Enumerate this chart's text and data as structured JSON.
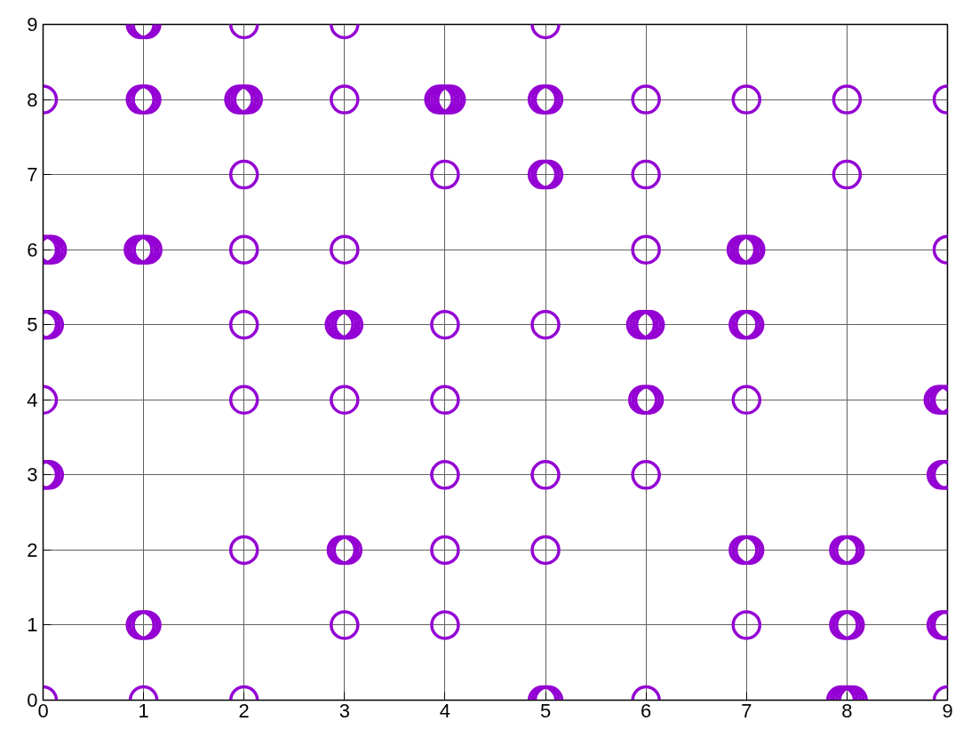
{
  "chart_data": {
    "type": "scatter",
    "x": [
      0.97,
      1,
      1.03,
      2,
      3,
      5,
      0,
      0.97,
      1,
      1.03,
      1.95,
      1.98,
      2.01,
      2.04,
      3,
      3.94,
      3.97,
      4,
      4.03,
      4.06,
      4.97,
      5,
      5.03,
      6,
      7,
      8,
      9,
      2,
      4,
      4.97,
      5,
      5.03,
      6,
      8,
      0,
      0.03,
      0.06,
      0.09,
      0.95,
      0.98,
      1.01,
      1.04,
      2,
      3,
      6,
      6.95,
      6.98,
      7.01,
      7.04,
      9,
      0,
      0.03,
      0.06,
      2,
      2.95,
      2.98,
      3.01,
      3.04,
      4,
      5,
      5.95,
      5.98,
      6.01,
      6.04,
      6.97,
      7,
      7.03,
      0,
      2,
      3,
      4,
      5.97,
      6,
      6.03,
      7,
      8.91,
      8.94,
      8.97,
      9,
      0,
      0.03,
      0.06,
      4,
      5,
      6,
      8.94,
      8.97,
      9,
      2,
      2.97,
      3,
      3.03,
      4,
      5,
      6.97,
      7,
      7.03,
      7.97,
      8,
      8.03,
      0.97,
      1,
      1.03,
      3,
      4,
      7,
      7.97,
      8,
      8.03,
      8.94,
      8.97,
      9,
      0,
      1,
      2,
      4.97,
      5,
      5.03,
      6,
      7.94,
      7.97,
      8,
      8.03,
      8.06,
      9
    ],
    "values": [
      9,
      9,
      9,
      9,
      9,
      9,
      8,
      8,
      8,
      8,
      8,
      8,
      8,
      8,
      8,
      8,
      8,
      8,
      8,
      8,
      8,
      8,
      8,
      8,
      8,
      8,
      8,
      7,
      7,
      7,
      7,
      7,
      7,
      7,
      6,
      6,
      6,
      6,
      6,
      6,
      6,
      6,
      6,
      6,
      6,
      6,
      6,
      6,
      6,
      6,
      5,
      5,
      5,
      5,
      5,
      5,
      5,
      5,
      5,
      5,
      5,
      5,
      5,
      5,
      5,
      5,
      5,
      4,
      4,
      4,
      4,
      4,
      4,
      4,
      4,
      4,
      4,
      4,
      4,
      3,
      3,
      3,
      3,
      3,
      3,
      3,
      3,
      3,
      2,
      2,
      2,
      2,
      2,
      2,
      2,
      2,
      2,
      2,
      2,
      2,
      1,
      1,
      1,
      1,
      1,
      1,
      1,
      1,
      1,
      1,
      1,
      1,
      0,
      0,
      0,
      0,
      0,
      0,
      0,
      0,
      0,
      0,
      0,
      0,
      0
    ],
    "color": "#9400d3",
    "marker": "circle",
    "xlim": [
      0,
      9
    ],
    "ylim": [
      0,
      9
    ],
    "xticks": [
      0,
      1,
      2,
      3,
      4,
      5,
      6,
      7,
      8,
      9
    ],
    "yticks": [
      0,
      1,
      2,
      3,
      4,
      5,
      6,
      7,
      8,
      9
    ],
    "grid": true
  }
}
